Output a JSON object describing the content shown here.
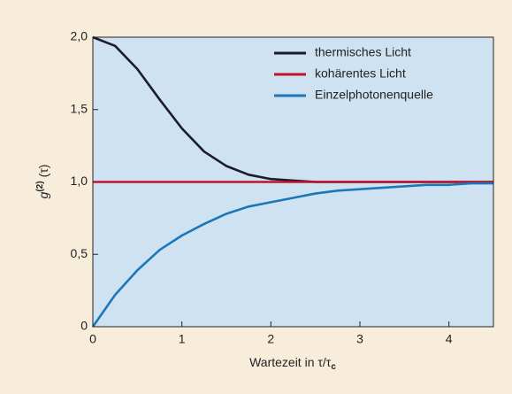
{
  "chart_data": {
    "type": "line",
    "ylabel": {
      "symbol": "g",
      "superscript": "(2)",
      "argument": "(τ)"
    },
    "xlabel": {
      "text": "Wartezeit in τ/τ",
      "subscript": "c"
    },
    "x": [
      0,
      0.25,
      0.5,
      0.75,
      1,
      1.25,
      1.5,
      1.75,
      2,
      2.25,
      2.5,
      2.75,
      3,
      3.25,
      3.5,
      3.75,
      4,
      4.25,
      4.5
    ],
    "series": [
      {
        "name": "thermisches Licht",
        "color": "#1b1b2b",
        "values": [
          2,
          1.94,
          1.78,
          1.57,
          1.37,
          1.21,
          1.11,
          1.05,
          1.02,
          1.01,
          1,
          1,
          1,
          1,
          1,
          1,
          1,
          1,
          1
        ]
      },
      {
        "name": "kohärentes Licht",
        "color": "#c0142e",
        "values": [
          1,
          1,
          1,
          1,
          1,
          1,
          1,
          1,
          1,
          1,
          1,
          1,
          1,
          1,
          1,
          1,
          1,
          1,
          1
        ]
      },
      {
        "name": "Einzelphotonenquelle",
        "color": "#1b78b8",
        "values": [
          0,
          0.22,
          0.39,
          0.53,
          0.63,
          0.71,
          0.78,
          0.83,
          0.86,
          0.89,
          0.92,
          0.94,
          0.95,
          0.96,
          0.97,
          0.98,
          0.98,
          0.99,
          0.99
        ]
      }
    ],
    "xlim": [
      0,
      4.5
    ],
    "xticks": [
      0,
      1,
      2,
      3,
      4
    ],
    "ylim": [
      0,
      2
    ],
    "yticks": [
      0,
      {
        "value": 0.5,
        "label": "0,5"
      },
      {
        "value": 1,
        "label": "1,0"
      },
      {
        "value": 1.5,
        "label": "1,5"
      },
      {
        "value": 2,
        "label": "2,0"
      }
    ],
    "legend": "upper right"
  }
}
